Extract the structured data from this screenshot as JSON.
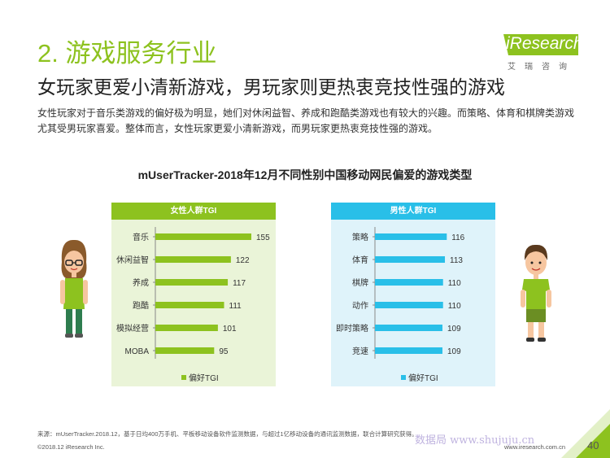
{
  "header": {
    "section_title": "2. 游戏服务行业",
    "headline": "女玩家更爱小清新游戏，男玩家则更热衷竞技性强的游戏",
    "description": "女性玩家对于音乐类游戏的偏好极为明显，她们对休闲益智、养成和跑酷类游戏也有较大的兴趣。而策略、体育和棋牌类游戏尤其受男玩家喜爱。整体而言，女性玩家更爱小清新游戏，而男玩家更热衷竞技性强的游戏。"
  },
  "logo": {
    "text": "iResearch",
    "subtitle": "艾瑞咨询"
  },
  "chart_title": "mUserTracker-2018年12月不同性别中国移动网民偏爱的游戏类型",
  "chart_data": [
    {
      "type": "bar",
      "panel_title": "女性人群TGI",
      "categories": [
        "音乐",
        "休闲益智",
        "养成",
        "跑酷",
        "模拟经营",
        "MOBA"
      ],
      "series": [
        {
          "name": "偏好TGI",
          "values": [
            155,
            122,
            117,
            111,
            101,
            95
          ]
        }
      ],
      "orientation": "horizontal",
      "colors": {
        "bar": "#8dc21f",
        "header": "#8dc21f",
        "background": "#eaf4d8"
      },
      "legend": "bottom"
    },
    {
      "type": "bar",
      "panel_title": "男性人群TGI",
      "categories": [
        "策略",
        "体育",
        "棋牌",
        "动作",
        "即时策略",
        "竞速"
      ],
      "series": [
        {
          "name": "偏好TGI",
          "values": [
            116,
            113,
            110,
            110,
            109,
            109
          ]
        }
      ],
      "orientation": "horizontal",
      "colors": {
        "bar": "#29bfe8",
        "header": "#29bfe8",
        "background": "#dff3fa"
      },
      "legend": "bottom"
    }
  ],
  "footer": {
    "source": "来源：mUserTracker.2018.12，基于日均400万手机、平板移动设备软件监测数据，与超过1亿移动设备的通讯监测数据，联合计算研究获得。",
    "copyright": "©2018.12 iResearch Inc.",
    "website": "www.iresearch.com.cn",
    "page_number": "40",
    "watermark": "数据局 www.shujuju.cn"
  },
  "colors": {
    "accent_green": "#8dc21f",
    "accent_blue": "#29bfe8"
  }
}
